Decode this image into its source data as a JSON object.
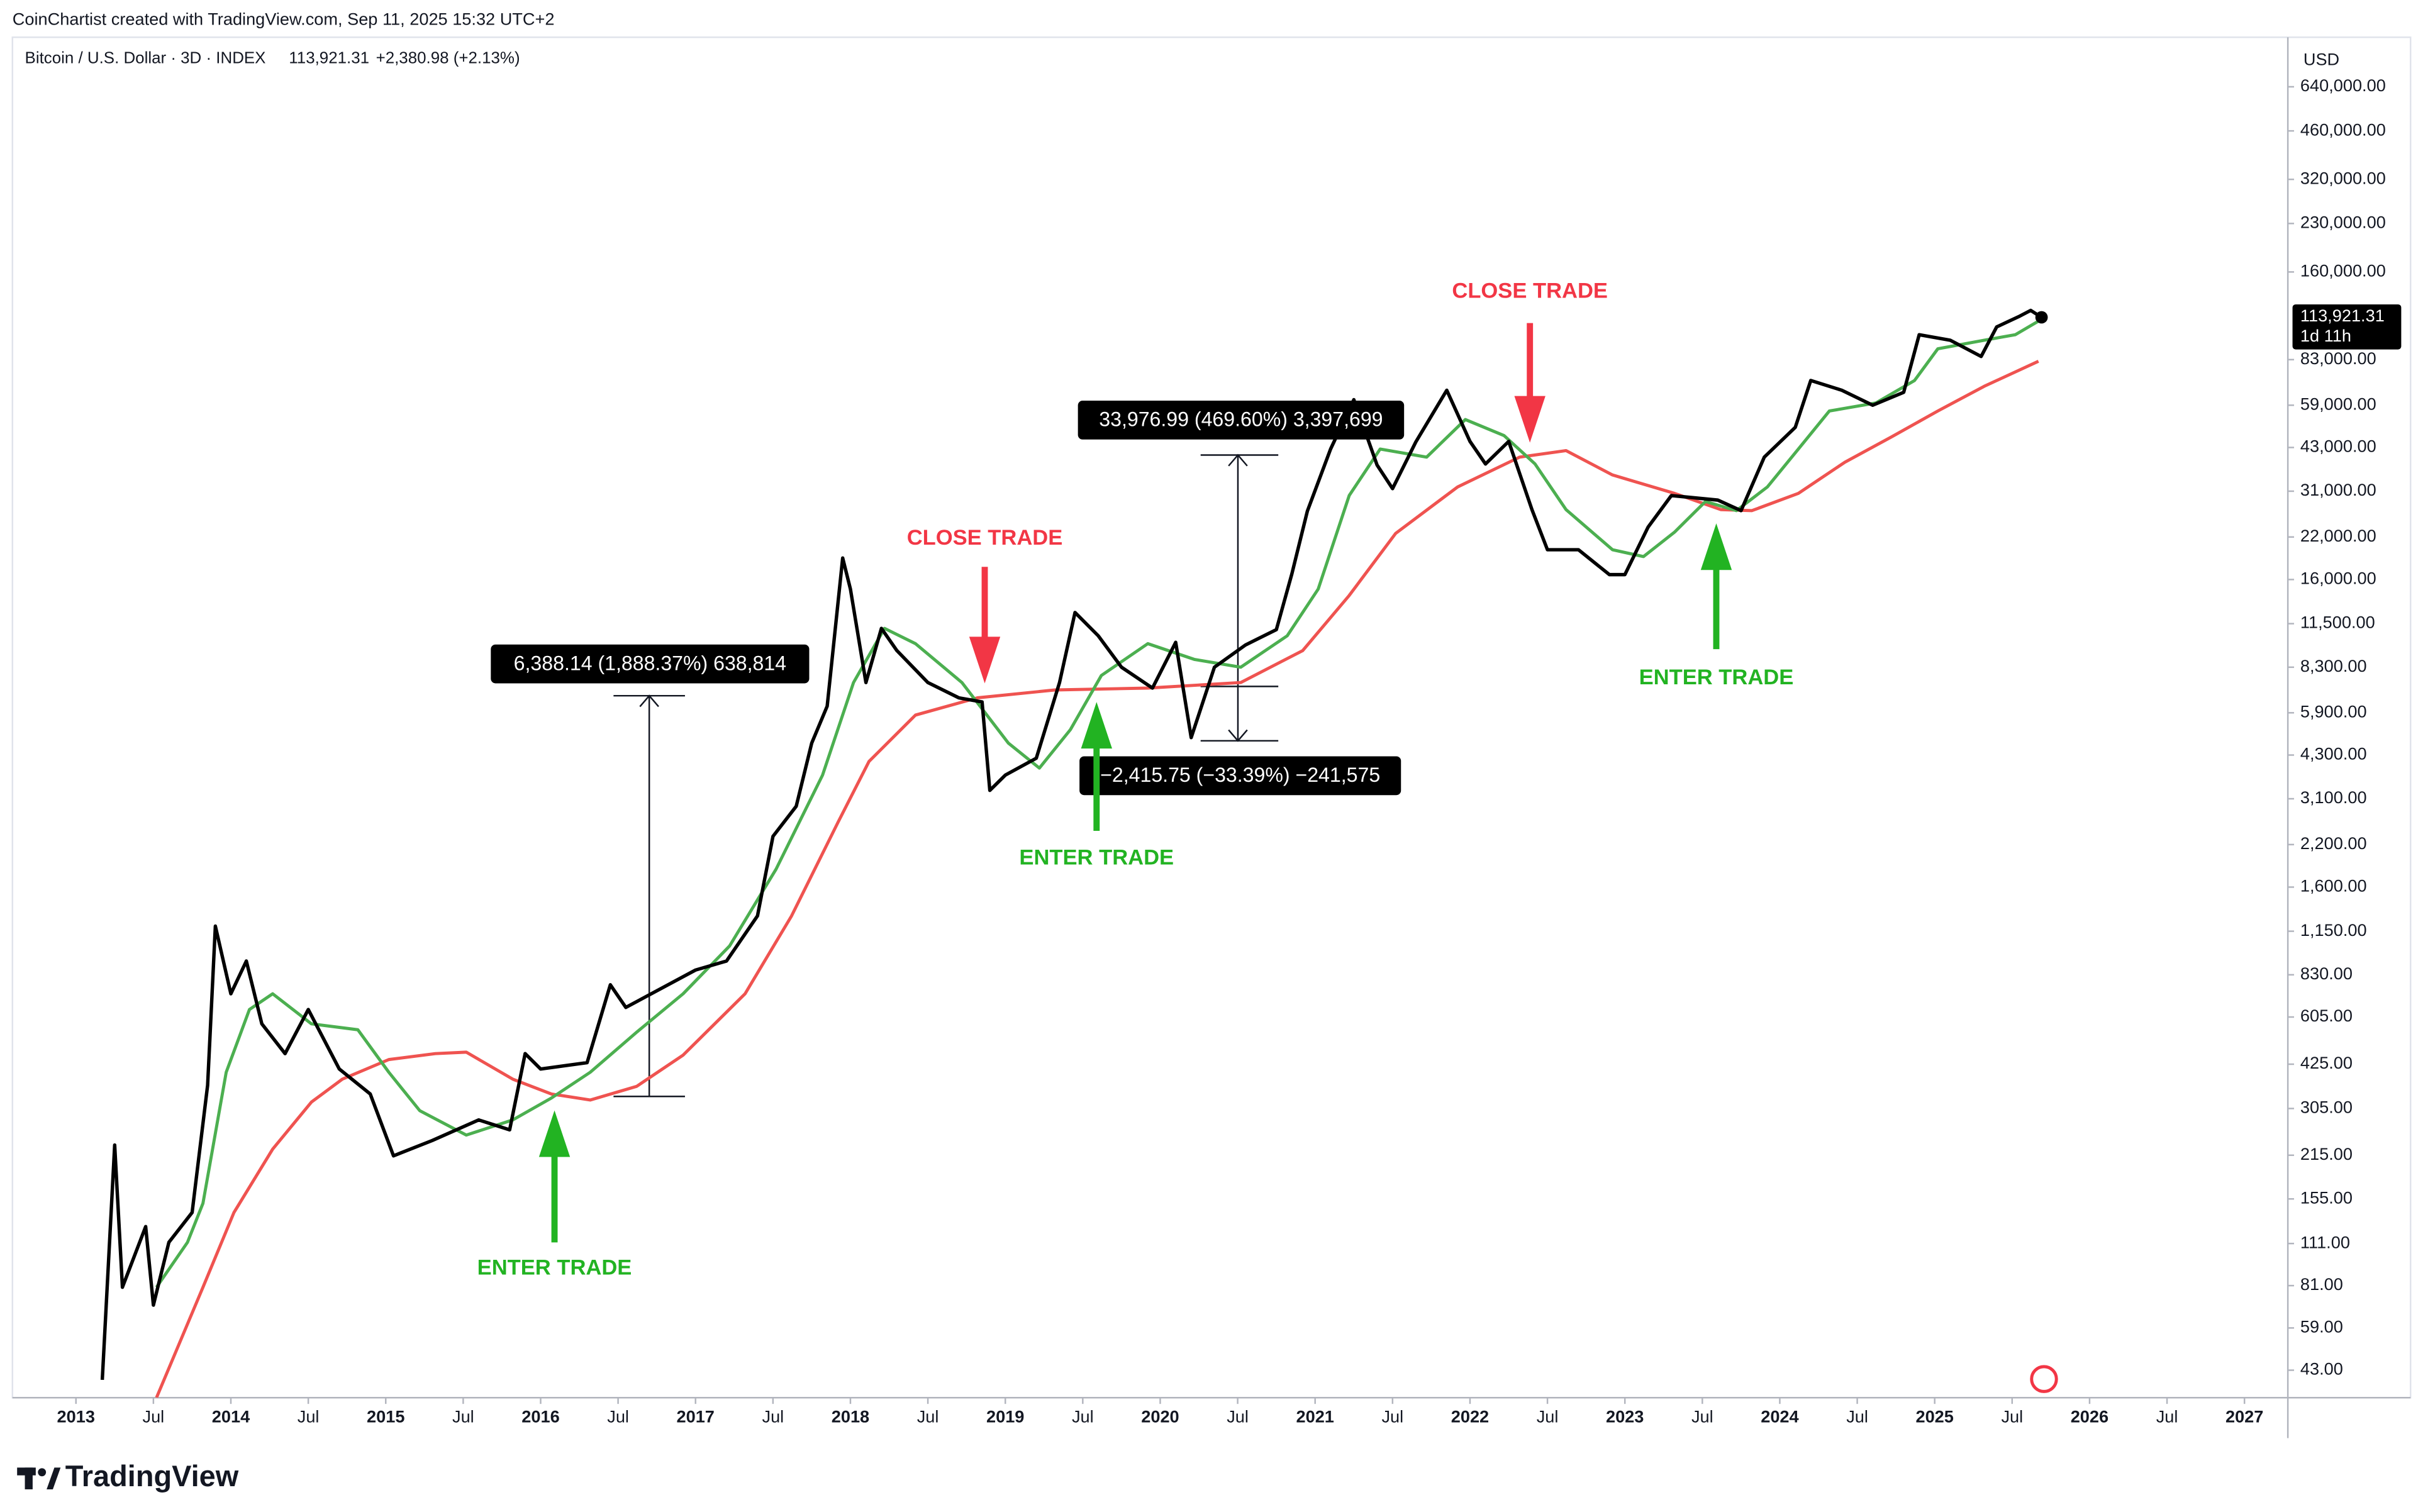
{
  "credit": "CoinChartist created with TradingView.com, Sep 11, 2025 15:32 UTC+2",
  "footer": {
    "logo": "TradingView"
  },
  "chart_data": {
    "type": "line",
    "title": "Bitcoin / U.S. Dollar · 3D · INDEX",
    "last_price_label": "113,921.31",
    "change_label": "+2,380.98 (+2.13%)",
    "countdown": "1d 11h",
    "y_unit": "USD",
    "log_scale": true,
    "grid": false,
    "xlim": [
      2012.59,
      2027.25
    ],
    "ylim": [
      35,
      885000
    ],
    "xticks": [
      2013,
      {
        "value": 2013.5,
        "label": "Jul"
      },
      2014,
      {
        "value": 2014.5,
        "label": "Jul"
      },
      2015,
      {
        "value": 2015.5,
        "label": "Jul"
      },
      2016,
      {
        "value": 2016.5,
        "label": "Jul"
      },
      2017,
      {
        "value": 2017.5,
        "label": "Jul"
      },
      2018,
      {
        "value": 2018.5,
        "label": "Jul"
      },
      2019,
      {
        "value": 2019.5,
        "label": "Jul"
      },
      2020,
      {
        "value": 2020.5,
        "label": "Jul"
      },
      2021,
      {
        "value": 2021.5,
        "label": "Jul"
      },
      2022,
      {
        "value": 2022.5,
        "label": "Jul"
      },
      2023,
      {
        "value": 2023.5,
        "label": "Jul"
      },
      2024,
      {
        "value": 2024.5,
        "label": "Jul"
      },
      2025,
      {
        "value": 2025.5,
        "label": "Jul"
      },
      2026,
      {
        "value": 2026.5,
        "label": "Jul"
      },
      2027
    ],
    "yticks": [
      {
        "value": 640000,
        "label": "640,000.00"
      },
      {
        "value": 460000,
        "label": "460,000.00"
      },
      {
        "value": 320000,
        "label": "320,000.00"
      },
      {
        "value": 230000,
        "label": "230,000.00"
      },
      {
        "value": 160000,
        "label": "160,000.00"
      },
      {
        "value": 83000,
        "label": "83,000.00"
      },
      {
        "value": 59000,
        "label": "59,000.00"
      },
      {
        "value": 43000,
        "label": "43,000.00"
      },
      {
        "value": 31000,
        "label": "31,000.00"
      },
      {
        "value": 22000,
        "label": "22,000.00"
      },
      {
        "value": 16000,
        "label": "16,000.00"
      },
      {
        "value": 11500,
        "label": "11,500.00"
      },
      {
        "value": 8300,
        "label": "8,300.00"
      },
      {
        "value": 5900,
        "label": "5,900.00"
      },
      {
        "value": 4300,
        "label": "4,300.00"
      },
      {
        "value": 3100,
        "label": "3,100.00"
      },
      {
        "value": 2200,
        "label": "2,200.00"
      },
      {
        "value": 1600,
        "label": "1,600.00"
      },
      {
        "value": 1150,
        "label": "1,150.00"
      },
      {
        "value": 830,
        "label": "830.00"
      },
      {
        "value": 605,
        "label": "605.00"
      },
      {
        "value": 425,
        "label": "425.00"
      },
      {
        "value": 305,
        "label": "305.00"
      },
      {
        "value": 215,
        "label": "215.00"
      },
      {
        "value": 155,
        "label": "155.00"
      },
      {
        "value": 111,
        "label": "111.00"
      },
      {
        "value": 81,
        "label": "81.00"
      },
      {
        "value": 59,
        "label": "59.00"
      },
      {
        "value": 43,
        "label": "43.00"
      }
    ],
    "series": [
      {
        "color": "#000000",
        "x": [
          2013.17,
          2013.25,
          2013.3,
          2013.45,
          2013.5,
          2013.6,
          2013.75,
          2013.85,
          2013.9,
          2014.0,
          2014.1,
          2014.2,
          2014.35,
          2014.5,
          2014.7,
          2014.9,
          2015.05,
          2015.3,
          2015.6,
          2015.8,
          2015.9,
          2016.0,
          2016.3,
          2016.45,
          2016.55,
          2017.0,
          2017.2,
          2017.4,
          2017.5,
          2017.65,
          2017.75,
          2017.85,
          2017.95,
          2018.0,
          2018.1,
          2018.2,
          2018.3,
          2018.5,
          2018.7,
          2018.85,
          2018.9,
          2019.0,
          2019.2,
          2019.35,
          2019.45,
          2019.6,
          2019.75,
          2019.95,
          2020.1,
          2020.2,
          2020.35,
          2020.55,
          2020.75,
          2020.85,
          2020.95,
          2021.1,
          2021.25,
          2021.4,
          2021.5,
          2021.65,
          2021.85,
          2022.0,
          2022.1,
          2022.25,
          2022.4,
          2022.5,
          2022.7,
          2022.9,
          2023.0,
          2023.15,
          2023.3,
          2023.6,
          2023.75,
          2023.9,
          2024.1,
          2024.2,
          2024.4,
          2024.6,
          2024.8,
          2024.9,
          2025.1,
          2025.3,
          2025.4,
          2025.55,
          2025.62,
          2025.69
        ],
        "values": [
          40,
          232,
          80,
          126,
          70,
          112,
          140,
          363,
          1195,
          720,
          920,
          575,
          460,
          640,
          410,
          340,
          214,
          240,
          280,
          260,
          460,
          410,
          430,
          770,
          650,
          860,
          920,
          1290,
          2340,
          2930,
          4700,
          6200,
          18800,
          14900,
          7400,
          11100,
          9400,
          7400,
          6600,
          6400,
          3300,
          3700,
          4200,
          7400,
          12500,
          10500,
          8300,
          7100,
          10000,
          4900,
          8300,
          9800,
          11000,
          16700,
          26700,
          42500,
          61500,
          37700,
          31600,
          44800,
          66000,
          45000,
          38000,
          45000,
          27000,
          20000,
          20000,
          16600,
          16600,
          23700,
          30000,
          29000,
          26800,
          40000,
          50000,
          71000,
          66000,
          59000,
          65000,
          100000,
          96000,
          85000,
          106000,
          115000,
          120000,
          113921
        ]
      },
      {
        "color": "#4caf50",
        "x": [
          2013.52,
          2013.72,
          2013.82,
          2013.97,
          2014.12,
          2014.27,
          2014.52,
          2014.82,
          2015.02,
          2015.22,
          2015.52,
          2015.82,
          2016.07,
          2016.32,
          2016.62,
          2016.92,
          2017.22,
          2017.52,
          2017.82,
          2018.02,
          2018.22,
          2018.42,
          2018.72,
          2019.02,
          2019.22,
          2019.42,
          2019.62,
          2019.92,
          2020.22,
          2020.52,
          2020.82,
          2021.02,
          2021.22,
          2021.42,
          2021.72,
          2021.97,
          2022.22,
          2022.42,
          2022.62,
          2022.92,
          2023.12,
          2023.32,
          2023.52,
          2023.72,
          2023.92,
          2024.12,
          2024.32,
          2024.62,
          2024.87,
          2025.02,
          2025.32,
          2025.52,
          2025.7
        ],
        "values": [
          80,
          112,
          150,
          400,
          640,
          720,
          575,
          550,
          400,
          300,
          250,
          280,
          330,
          400,
          540,
          720,
          1030,
          1830,
          3700,
          7400,
          11100,
          9900,
          7400,
          4700,
          3900,
          5200,
          7800,
          9900,
          8800,
          8300,
          10500,
          14900,
          30000,
          42500,
          40000,
          53000,
          47000,
          38000,
          27000,
          20000,
          19000,
          22800,
          28700,
          26800,
          32000,
          42500,
          56500,
          60000,
          71000,
          90000,
          96000,
          100000,
          113000
        ]
      },
      {
        "color": "#ef5350",
        "x": [
          2013.52,
          2013.82,
          2014.02,
          2014.27,
          2014.52,
          2014.72,
          2015.02,
          2015.32,
          2015.52,
          2015.82,
          2016.07,
          2016.32,
          2016.62,
          2016.92,
          2017.32,
          2017.62,
          2017.92,
          2018.12,
          2018.42,
          2018.82,
          2019.32,
          2019.92,
          2020.52,
          2020.92,
          2021.22,
          2021.52,
          2021.92,
          2022.32,
          2022.62,
          2022.92,
          2023.32,
          2023.62,
          2023.82,
          2024.12,
          2024.42,
          2024.72,
          2025.02,
          2025.32,
          2025.67
        ],
        "values": [
          35,
          80,
          140,
          225,
          320,
          380,
          440,
          460,
          465,
          380,
          340,
          325,
          360,
          455,
          720,
          1290,
          2600,
          4100,
          5800,
          6600,
          7000,
          7100,
          7400,
          9400,
          14200,
          22600,
          32000,
          40000,
          42000,
          35000,
          30500,
          27000,
          26800,
          30500,
          38500,
          46500,
          56500,
          68000,
          82000
        ]
      }
    ],
    "annotations": [
      "CLOSE TRADE",
      "CLOSE TRADE",
      "ENTER TRADE",
      "ENTER TRADE",
      "ENTER TRADE"
    ],
    "measurements": [
      "6,388.14 (1,888.37%) 638,814",
      "33,976.99 (469.60%) 3,397,699",
      "−2,415.75 (−33.39%) −241,575"
    ]
  }
}
